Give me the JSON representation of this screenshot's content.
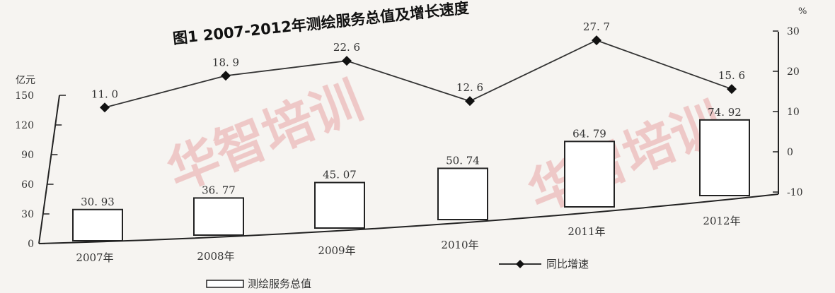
{
  "chart_data": {
    "type": "bar+line",
    "title": "图1 2007-2012年测绘服务总值及增长速度",
    "categories": [
      "2007年",
      "2008年",
      "2009年",
      "2010年",
      "2011年",
      "2012年"
    ],
    "bar_series": {
      "name": "测绘服务总值",
      "values": [
        30.93,
        36.77,
        45.07,
        50.74,
        64.79,
        74.92
      ],
      "labels": [
        "30. 93",
        "36. 77",
        "45. 07",
        "50. 74",
        "64. 79",
        "74. 92"
      ]
    },
    "line_series": {
      "name": "同比增速",
      "values": [
        11.0,
        18.9,
        22.6,
        12.6,
        27.7,
        15.6
      ],
      "labels": [
        "11. 0",
        "18. 9",
        "22. 6",
        "12. 6",
        "27. 7",
        "15. 6"
      ]
    },
    "left_axis": {
      "unit": "亿元",
      "ticks": [
        "0",
        "30",
        "60",
        "90",
        "120",
        "150"
      ],
      "ylim": [
        0,
        150
      ]
    },
    "right_axis": {
      "unit": "%",
      "ticks": [
        "-10",
        "0",
        "10",
        "20",
        "30"
      ],
      "ylim": [
        -10,
        30
      ]
    },
    "legend": {
      "bar_label": "测绘服务总值",
      "line_label": "同比增速",
      "placement": "bottom"
    },
    "watermark": "华智培训",
    "colors": {
      "line": "#333333",
      "bar_fill": "#ffffff",
      "bar_stroke": "#222222",
      "watermark": "#e8a4a4"
    }
  }
}
